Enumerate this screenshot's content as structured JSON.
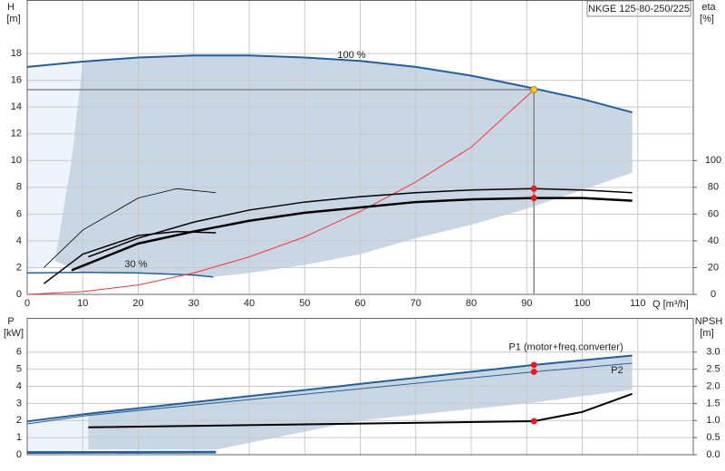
{
  "chart_data": [
    {
      "type": "line",
      "title": "NKGE 125-80-250/225",
      "ylabel": "H",
      "yunit": "[m]",
      "y2label": "eta",
      "y2unit": "[%]",
      "xlabel": "Q [m³/h]",
      "xlim": [
        0,
        120
      ],
      "xticks": [
        0,
        10,
        20,
        30,
        40,
        50,
        60,
        70,
        80,
        90,
        100,
        110
      ],
      "ylim": [
        0,
        22
      ],
      "yticks": [
        0,
        2,
        4,
        6,
        8,
        10,
        12,
        14,
        16,
        18
      ],
      "y2lim": [
        0,
        220
      ],
      "y2ticks": [
        0,
        20,
        40,
        60,
        80,
        100
      ],
      "grid": true,
      "annotations": [
        "100 %",
        "30 %"
      ],
      "regions": [
        {
          "color": "#eef4fb",
          "x": [
            0,
            10,
            8,
            5,
            0
          ],
          "y": [
            17,
            17.4,
            10,
            2.5,
            1.6
          ]
        },
        {
          "color": "#c9d7e4",
          "x": [
            10,
            20,
            30,
            40,
            50,
            60,
            70,
            80,
            90,
            100,
            109,
            109,
            100,
            90,
            80,
            70,
            60,
            50,
            40,
            33.5,
            20,
            10,
            5,
            8
          ],
          "y": [
            17.4,
            17.7,
            17.85,
            17.85,
            17.7,
            17.45,
            17.0,
            16.35,
            15.5,
            14.6,
            13.6,
            9.1,
            7.8,
            6.4,
            5.2,
            4.2,
            3.0,
            2.2,
            1.6,
            1.3,
            1.6,
            1.65,
            2.5,
            10
          ]
        }
      ],
      "series": [
        {
          "color": "#1f5fa0",
          "width": 2,
          "x": [
            0,
            10,
            20,
            30,
            40,
            50,
            60,
            70,
            80,
            90,
            100,
            109
          ],
          "values": [
            17,
            17.4,
            17.7,
            17.85,
            17.85,
            17.7,
            17.45,
            17.0,
            16.35,
            15.5,
            14.6,
            13.6
          ]
        },
        {
          "color": "#1f5fa0",
          "width": 1.5,
          "x": [
            0,
            10,
            20,
            30,
            33.5
          ],
          "values": [
            1.6,
            1.65,
            1.6,
            1.45,
            1.3
          ]
        },
        {
          "color": "#ff3030",
          "width": 1,
          "x": [
            0,
            10,
            20,
            30,
            40,
            50,
            60,
            70,
            80,
            91.3
          ],
          "values": [
            0,
            0.2,
            0.7,
            1.6,
            2.8,
            4.3,
            6.2,
            8.4,
            11,
            15.3
          ]
        },
        {
          "color": "#000000",
          "width": 1.5,
          "axis": "y2",
          "x": [
            11,
            20,
            30,
            40,
            50,
            60,
            70,
            80,
            91.3,
            100,
            109
          ],
          "values": [
            28,
            42,
            54,
            63,
            69,
            73,
            76,
            78,
            79,
            78,
            76
          ]
        },
        {
          "color": "#000000",
          "width": 2.5,
          "axis": "y2",
          "x": [
            8,
            20,
            30,
            40,
            50,
            60,
            70,
            80,
            91.3,
            100,
            109
          ],
          "values": [
            18,
            38,
            47,
            55,
            61,
            65,
            69,
            71,
            72,
            72,
            70
          ]
        },
        {
          "color": "#000000",
          "width": 0.8,
          "axis": "y2",
          "x": [
            3,
            10,
            20,
            27,
            34
          ],
          "values": [
            20,
            48,
            72,
            79,
            76
          ]
        },
        {
          "color": "#000000",
          "width": 1.5,
          "axis": "y2",
          "x": [
            3,
            10,
            20,
            27,
            34
          ],
          "values": [
            8,
            30,
            44,
            47,
            46
          ]
        }
      ],
      "points": [
        {
          "x": 91.3,
          "y": 15.3,
          "color": "#f5d02a"
        },
        {
          "x": 91.3,
          "y": 79,
          "axis": "y2",
          "color": "#e02020"
        },
        {
          "x": 91.3,
          "y": 72,
          "axis": "y2",
          "color": "#e02020"
        }
      ]
    },
    {
      "type": "line",
      "ylabel": "P",
      "yunit": "[kW]",
      "y2label": "NPSH",
      "y2unit": "[m]",
      "xlim": [
        0,
        120
      ],
      "xticks": [
        0,
        10,
        20,
        30,
        40,
        50,
        60,
        70,
        80,
        90,
        100,
        110
      ],
      "ylim": [
        0,
        8
      ],
      "yticks": [
        0,
        1,
        2,
        3,
        4,
        5,
        6
      ],
      "y2lim": [
        0,
        4
      ],
      "y2ticks": [
        {
          "value": 0,
          "label": "0.0"
        },
        0.5,
        {
          "value": 1,
          "label": "1.0"
        },
        1.5,
        {
          "value": 2,
          "label": "2.0"
        },
        2.5,
        {
          "value": 3,
          "label": "3.0"
        }
      ],
      "grid": true,
      "regions": [
        {
          "color": "#eef4fb",
          "x": [
            0,
            11,
            11,
            0
          ],
          "y": [
            1.95,
            2.4,
            0.3,
            0.1
          ]
        },
        {
          "color": "#c9d7e4",
          "x": [
            11,
            91.3,
            109,
            109,
            90,
            60,
            34,
            11
          ],
          "y": [
            2.4,
            5.25,
            5.8,
            3.8,
            3.0,
            2.0,
            0.3,
            0.3
          ]
        }
      ],
      "series": [
        {
          "label": "P1 (motor+freq.converter)",
          "color": "#1f5fa0",
          "width": 2,
          "x": [
            0,
            11,
            91.3,
            109
          ],
          "values": [
            1.95,
            2.4,
            5.25,
            5.8
          ]
        },
        {
          "label": "P2",
          "color": "#1f5fa0",
          "width": 1,
          "x": [
            0,
            11,
            91.3,
            109
          ],
          "values": [
            1.8,
            2.3,
            4.85,
            5.35
          ]
        },
        {
          "color": "#000000",
          "width": 2,
          "axis": "y2",
          "x": [
            11,
            91.3,
            100,
            109
          ],
          "values": [
            0.8,
            0.98,
            1.25,
            1.78
          ]
        },
        {
          "color": "#1f5fa0",
          "width": 2,
          "x": [
            0,
            34
          ],
          "values": [
            0.15,
            0.17
          ]
        },
        {
          "color": "#1f5fa0",
          "width": 1,
          "x": [
            0,
            34
          ],
          "values": [
            0.08,
            0.1
          ]
        }
      ],
      "points": [
        {
          "x": 91.3,
          "y": 5.25,
          "color": "#e02020"
        },
        {
          "x": 91.3,
          "y": 4.85,
          "color": "#e02020"
        },
        {
          "x": 91.3,
          "y": 0.98,
          "axis": "y2",
          "color": "#e02020"
        }
      ]
    }
  ]
}
